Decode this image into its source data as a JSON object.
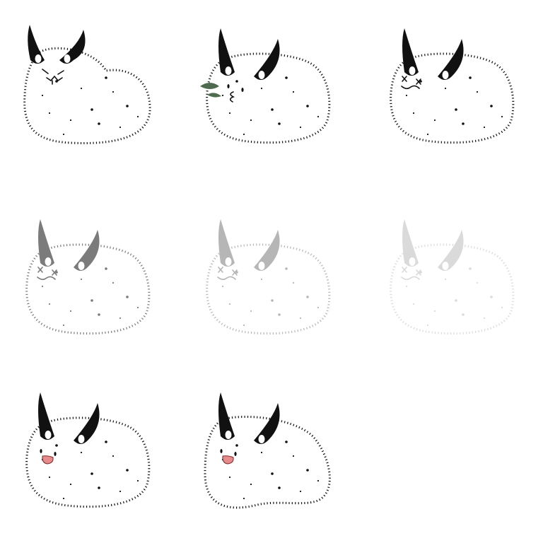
{
  "sheet": {
    "background": "#ffffff"
  },
  "palette": {
    "ink": "#111111",
    "leaf": "#4f6b4f",
    "mouth_fill": "#e58b8b",
    "mouth_stroke": "#7a2a2a"
  },
  "frames": [
    {
      "name": "frame-grumpy",
      "expression": "grumpy",
      "opacity": 1,
      "ears": "apart",
      "body": "wide"
    },
    {
      "name": "frame-munching-leaf",
      "expression": "munching",
      "opacity": 1,
      "ears": "together",
      "body": "round",
      "prop": "leaf"
    },
    {
      "name": "frame-dizzy",
      "expression": "dizzy-x-eyes",
      "opacity": 1,
      "ears": "together",
      "body": "round"
    },
    {
      "name": "frame-dizzy-fade-1",
      "expression": "dizzy-x-eyes",
      "opacity": 0.55,
      "ears": "together",
      "body": "round"
    },
    {
      "name": "frame-dizzy-fade-2",
      "expression": "dizzy-x-eyes",
      "opacity": 0.3,
      "ears": "together",
      "body": "round"
    },
    {
      "name": "frame-dizzy-fade-3",
      "expression": "dizzy-x-eyes",
      "opacity": 0.15,
      "ears": "together",
      "body": "round"
    },
    {
      "name": "frame-happy",
      "expression": "happy-open-mouth",
      "opacity": 1,
      "ears": "together",
      "body": "round"
    },
    {
      "name": "frame-happy-squish",
      "expression": "happy-open-mouth",
      "opacity": 1,
      "ears": "together",
      "body": "squish"
    }
  ]
}
